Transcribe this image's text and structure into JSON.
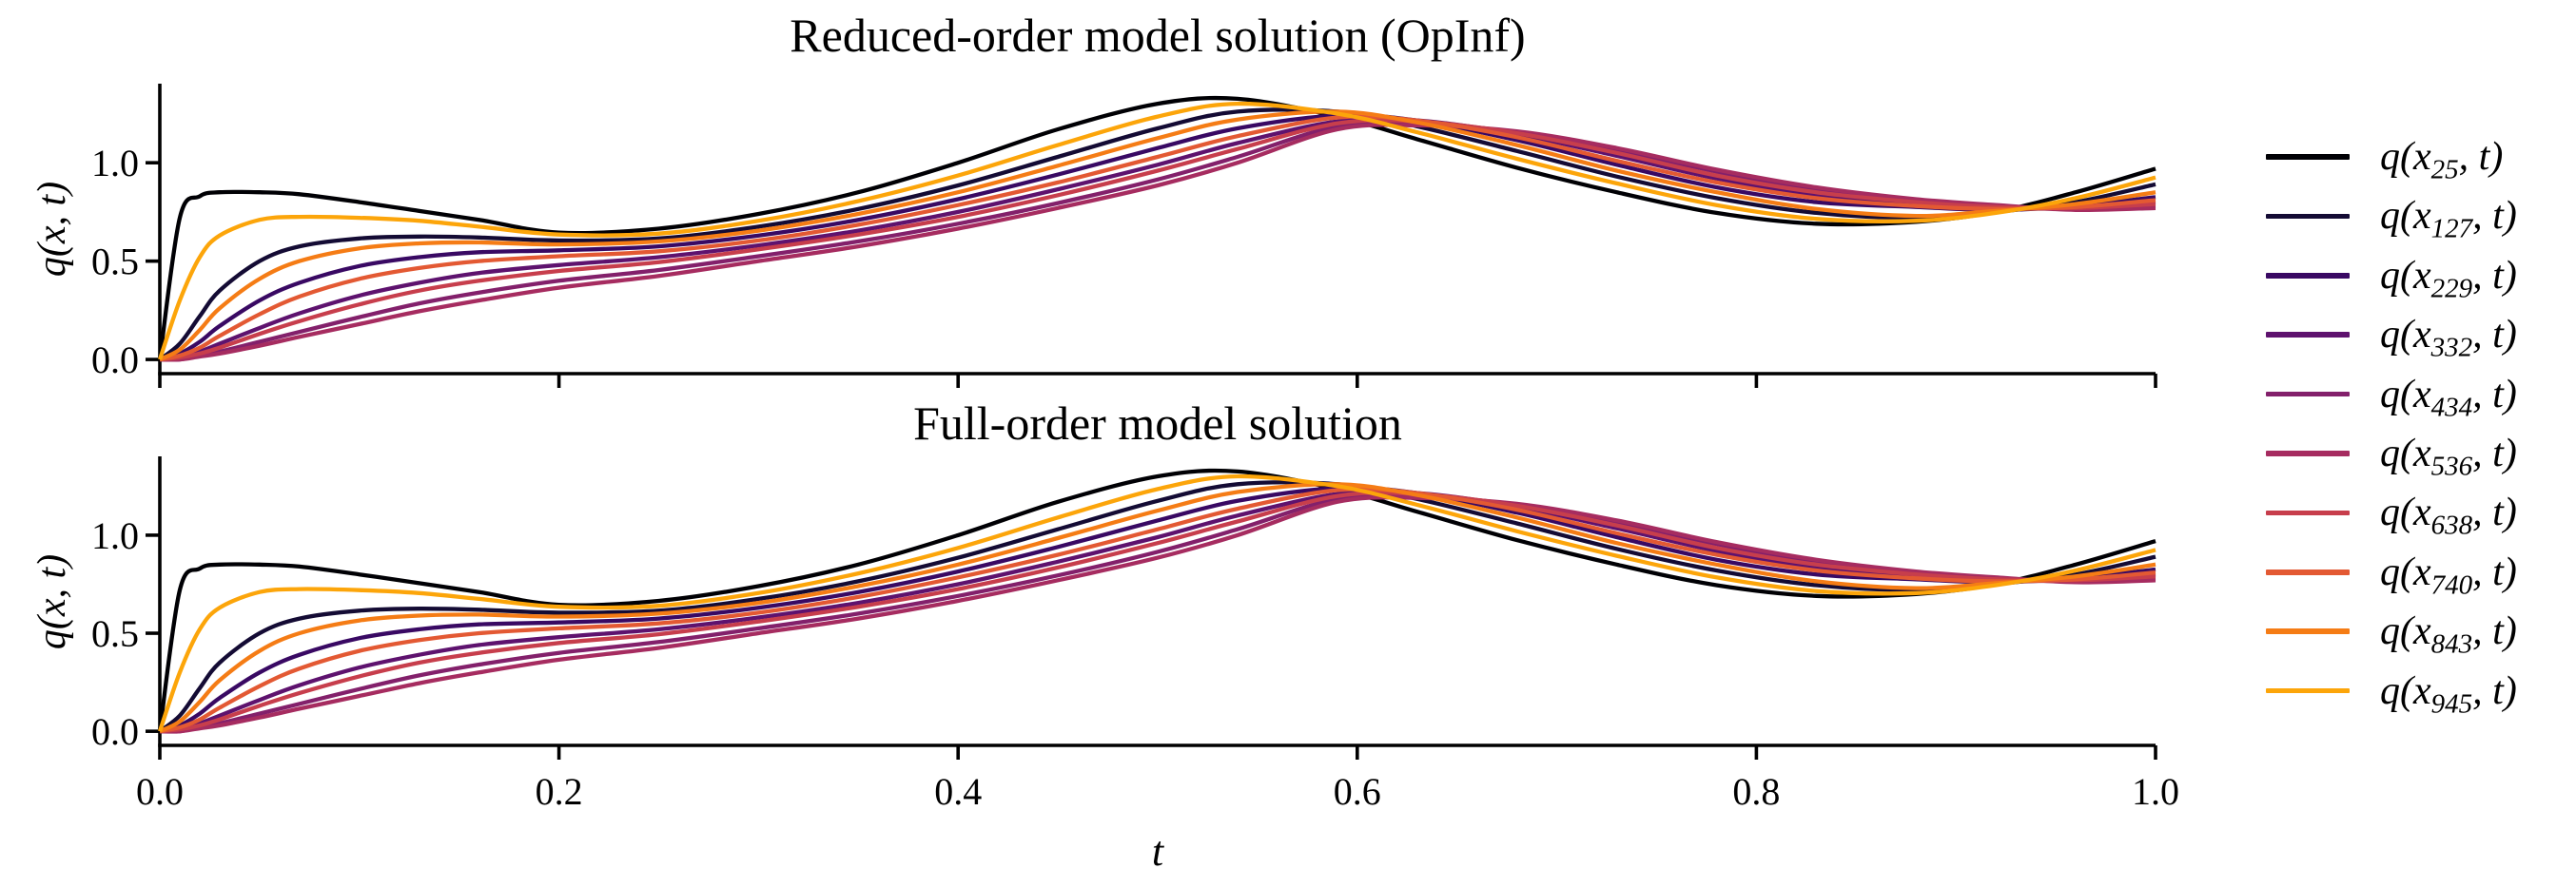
{
  "figure": {
    "background": "#ffffff",
    "text_color": "#000000",
    "legend_position": "right-outside-center"
  },
  "chart_data": [
    {
      "type": "line",
      "title": "Reduced-order model solution (OpInf)",
      "xlabel": "t",
      "ylabel": "q(x, t)",
      "xlim": [
        0,
        1
      ],
      "ylim": [
        -0.072,
        1.402
      ],
      "grid": false,
      "show_xtick_labels": false,
      "xticks": [
        0,
        0.2,
        0.4,
        0.6,
        0.8,
        1.0
      ],
      "xtick_labels": [
        "0.0",
        "0.2",
        "0.4",
        "0.6",
        "0.8",
        "1.0"
      ],
      "yticks": [
        0,
        0.5,
        1.0
      ],
      "ytick_labels": [
        "0.0",
        "0.5",
        "1.0"
      ],
      "t": [
        0,
        0.01,
        0.02,
        0.03,
        0.05,
        0.07,
        0.1,
        0.13,
        0.16,
        0.2,
        0.25,
        0.3,
        0.35,
        0.4,
        0.45,
        0.5,
        0.54,
        0.59,
        0.63,
        0.68,
        0.73,
        0.78,
        0.83,
        0.88,
        0.92,
        0.96,
        1.0
      ],
      "series": [
        {
          "label": "q(x_25, t)",
          "sub": "25",
          "color": "#000004",
          "q": [
            0,
            0.72,
            0.83,
            0.85,
            0.85,
            0.84,
            0.8,
            0.755,
            0.71,
            0.645,
            0.665,
            0.74,
            0.85,
            1.0,
            1.17,
            1.3,
            1.325,
            1.235,
            1.12,
            0.975,
            0.85,
            0.745,
            0.69,
            0.7,
            0.75,
            0.85,
            0.97
          ]
        },
        {
          "label": "q(x_127, t)",
          "sub": "127",
          "color": "#140b34",
          "q": [
            0,
            0.08,
            0.22,
            0.35,
            0.5,
            0.575,
            0.615,
            0.625,
            0.62,
            0.605,
            0.615,
            0.675,
            0.765,
            0.885,
            1.03,
            1.175,
            1.26,
            1.26,
            1.185,
            1.06,
            0.93,
            0.82,
            0.745,
            0.72,
            0.75,
            0.8,
            0.89
          ]
        },
        {
          "label": "q(x_229, t)",
          "sub": "229",
          "color": "#390963",
          "q": [
            0,
            0.03,
            0.09,
            0.17,
            0.3,
            0.39,
            0.475,
            0.52,
            0.545,
            0.555,
            0.575,
            0.63,
            0.71,
            0.815,
            0.94,
            1.075,
            1.175,
            1.24,
            1.215,
            1.115,
            0.99,
            0.875,
            0.8,
            0.775,
            0.76,
            0.78,
            0.825
          ]
        },
        {
          "label": "q(x_332, t)",
          "sub": "332",
          "color": "#5e126e",
          "q": [
            0,
            0.01,
            0.04,
            0.08,
            0.16,
            0.235,
            0.325,
            0.39,
            0.44,
            0.48,
            0.52,
            0.58,
            0.655,
            0.75,
            0.865,
            0.99,
            1.1,
            1.21,
            1.215,
            1.145,
            1.035,
            0.92,
            0.835,
            0.79,
            0.77,
            0.77,
            0.8
          ]
        },
        {
          "label": "q(x_434, t)",
          "sub": "434",
          "color": "#83206b",
          "q": [
            0,
            0,
            0.02,
            0.04,
            0.09,
            0.14,
            0.215,
            0.285,
            0.34,
            0.4,
            0.455,
            0.525,
            0.6,
            0.69,
            0.795,
            0.915,
            1.03,
            1.185,
            1.2,
            1.155,
            1.065,
            0.955,
            0.86,
            0.805,
            0.78,
            0.765,
            0.78
          ]
        },
        {
          "label": "q(x_536, t)",
          "sub": "536",
          "color": "#a62c60",
          "q": [
            0,
            0,
            0.015,
            0.03,
            0.07,
            0.115,
            0.18,
            0.245,
            0.3,
            0.365,
            0.425,
            0.5,
            0.575,
            0.665,
            0.77,
            0.885,
            1.0,
            1.17,
            1.19,
            1.16,
            1.075,
            0.965,
            0.875,
            0.815,
            0.785,
            0.76,
            0.77
          ]
        },
        {
          "label": "q(x_638, t)",
          "sub": "638",
          "color": "#c73e4c",
          "q": [
            0,
            0.01,
            0.03,
            0.06,
            0.13,
            0.195,
            0.28,
            0.35,
            0.4,
            0.45,
            0.495,
            0.56,
            0.635,
            0.725,
            0.835,
            0.96,
            1.07,
            1.2,
            1.21,
            1.15,
            1.05,
            0.935,
            0.85,
            0.8,
            0.775,
            0.77,
            0.79
          ]
        },
        {
          "label": "q(x_740, t)",
          "sub": "740",
          "color": "#e35933",
          "q": [
            0,
            0.02,
            0.06,
            0.12,
            0.23,
            0.32,
            0.41,
            0.465,
            0.5,
            0.525,
            0.55,
            0.605,
            0.685,
            0.785,
            0.9,
            1.03,
            1.135,
            1.23,
            1.215,
            1.13,
            1.01,
            0.9,
            0.82,
            0.78,
            0.765,
            0.775,
            0.81
          ]
        },
        {
          "label": "q(x_843, t)",
          "sub": "843",
          "color": "#f57c15",
          "q": [
            0,
            0.05,
            0.15,
            0.26,
            0.41,
            0.5,
            0.565,
            0.59,
            0.595,
            0.585,
            0.6,
            0.655,
            0.74,
            0.85,
            0.985,
            1.125,
            1.22,
            1.26,
            1.205,
            1.09,
            0.96,
            0.85,
            0.765,
            0.73,
            0.755,
            0.79,
            0.85
          ]
        },
        {
          "label": "q(x_945, t)",
          "sub": "945",
          "color": "#fca50a",
          "q": [
            0,
            0.3,
            0.52,
            0.63,
            0.71,
            0.725,
            0.72,
            0.705,
            0.675,
            0.635,
            0.64,
            0.705,
            0.805,
            0.935,
            1.09,
            1.235,
            1.3,
            1.25,
            1.155,
            1.02,
            0.895,
            0.785,
            0.715,
            0.705,
            0.745,
            0.82,
            0.925
          ]
        }
      ]
    },
    {
      "type": "line",
      "title": "Full-order model solution",
      "xlabel": "t",
      "ylabel": "q(x, t)",
      "xlim": [
        0,
        1
      ],
      "ylim": [
        -0.072,
        1.402
      ],
      "grid": false,
      "show_xtick_labels": true,
      "xticks": [
        0,
        0.2,
        0.4,
        0.6,
        0.8,
        1.0
      ],
      "xtick_labels": [
        "0.0",
        "0.2",
        "0.4",
        "0.6",
        "0.8",
        "1.0"
      ],
      "yticks": [
        0,
        0.5,
        1.0
      ],
      "ytick_labels": [
        "0.0",
        "0.5",
        "1.0"
      ],
      "t": [
        0,
        0.01,
        0.02,
        0.03,
        0.05,
        0.07,
        0.1,
        0.13,
        0.16,
        0.2,
        0.25,
        0.3,
        0.35,
        0.4,
        0.45,
        0.5,
        0.54,
        0.59,
        0.63,
        0.68,
        0.73,
        0.78,
        0.83,
        0.88,
        0.92,
        0.96,
        1.0
      ],
      "series": [
        {
          "label": "q(x_25, t)",
          "sub": "25",
          "color": "#000004",
          "q": [
            0,
            0.72,
            0.83,
            0.85,
            0.85,
            0.84,
            0.8,
            0.755,
            0.71,
            0.645,
            0.665,
            0.74,
            0.85,
            1.0,
            1.17,
            1.3,
            1.325,
            1.235,
            1.12,
            0.975,
            0.85,
            0.745,
            0.69,
            0.7,
            0.75,
            0.85,
            0.97
          ]
        },
        {
          "label": "q(x_127, t)",
          "sub": "127",
          "color": "#140b34",
          "q": [
            0,
            0.08,
            0.22,
            0.35,
            0.5,
            0.575,
            0.615,
            0.625,
            0.62,
            0.605,
            0.615,
            0.675,
            0.765,
            0.885,
            1.03,
            1.175,
            1.26,
            1.26,
            1.185,
            1.06,
            0.93,
            0.82,
            0.745,
            0.72,
            0.75,
            0.8,
            0.89
          ]
        },
        {
          "label": "q(x_229, t)",
          "sub": "229",
          "color": "#390963",
          "q": [
            0,
            0.03,
            0.09,
            0.17,
            0.3,
            0.39,
            0.475,
            0.52,
            0.545,
            0.555,
            0.575,
            0.63,
            0.71,
            0.815,
            0.94,
            1.075,
            1.175,
            1.24,
            1.215,
            1.115,
            0.99,
            0.875,
            0.8,
            0.775,
            0.76,
            0.78,
            0.825
          ]
        },
        {
          "label": "q(x_332, t)",
          "sub": "332",
          "color": "#5e126e",
          "q": [
            0,
            0.01,
            0.04,
            0.08,
            0.16,
            0.235,
            0.325,
            0.39,
            0.44,
            0.48,
            0.52,
            0.58,
            0.655,
            0.75,
            0.865,
            0.99,
            1.1,
            1.21,
            1.215,
            1.145,
            1.035,
            0.92,
            0.835,
            0.79,
            0.77,
            0.77,
            0.8
          ]
        },
        {
          "label": "q(x_434, t)",
          "sub": "434",
          "color": "#83206b",
          "q": [
            0,
            0,
            0.02,
            0.04,
            0.09,
            0.14,
            0.215,
            0.285,
            0.34,
            0.4,
            0.455,
            0.525,
            0.6,
            0.69,
            0.795,
            0.915,
            1.03,
            1.185,
            1.2,
            1.155,
            1.065,
            0.955,
            0.86,
            0.805,
            0.78,
            0.765,
            0.78
          ]
        },
        {
          "label": "q(x_536, t)",
          "sub": "536",
          "color": "#a62c60",
          "q": [
            0,
            0,
            0.015,
            0.03,
            0.07,
            0.115,
            0.18,
            0.245,
            0.3,
            0.365,
            0.425,
            0.5,
            0.575,
            0.665,
            0.77,
            0.885,
            1.0,
            1.17,
            1.19,
            1.16,
            1.075,
            0.965,
            0.875,
            0.815,
            0.785,
            0.76,
            0.77
          ]
        },
        {
          "label": "q(x_638, t)",
          "sub": "638",
          "color": "#c73e4c",
          "q": [
            0,
            0.01,
            0.03,
            0.06,
            0.13,
            0.195,
            0.28,
            0.35,
            0.4,
            0.45,
            0.495,
            0.56,
            0.635,
            0.725,
            0.835,
            0.96,
            1.07,
            1.2,
            1.21,
            1.15,
            1.05,
            0.935,
            0.85,
            0.8,
            0.775,
            0.77,
            0.79
          ]
        },
        {
          "label": "q(x_740, t)",
          "sub": "740",
          "color": "#e35933",
          "q": [
            0,
            0.02,
            0.06,
            0.12,
            0.23,
            0.32,
            0.41,
            0.465,
            0.5,
            0.525,
            0.55,
            0.605,
            0.685,
            0.785,
            0.9,
            1.03,
            1.135,
            1.23,
            1.215,
            1.13,
            1.01,
            0.9,
            0.82,
            0.78,
            0.765,
            0.775,
            0.81
          ]
        },
        {
          "label": "q(x_843, t)",
          "sub": "843",
          "color": "#f57c15",
          "q": [
            0,
            0.05,
            0.15,
            0.26,
            0.41,
            0.5,
            0.565,
            0.59,
            0.595,
            0.585,
            0.6,
            0.655,
            0.74,
            0.85,
            0.985,
            1.125,
            1.22,
            1.26,
            1.205,
            1.09,
            0.96,
            0.85,
            0.765,
            0.73,
            0.755,
            0.79,
            0.85
          ]
        },
        {
          "label": "q(x_945, t)",
          "sub": "945",
          "color": "#fca50a",
          "q": [
            0,
            0.3,
            0.52,
            0.63,
            0.71,
            0.725,
            0.72,
            0.705,
            0.675,
            0.635,
            0.64,
            0.705,
            0.805,
            0.935,
            1.09,
            1.235,
            1.3,
            1.25,
            1.155,
            1.02,
            0.895,
            0.785,
            0.715,
            0.705,
            0.745,
            0.82,
            0.925
          ]
        }
      ]
    }
  ]
}
